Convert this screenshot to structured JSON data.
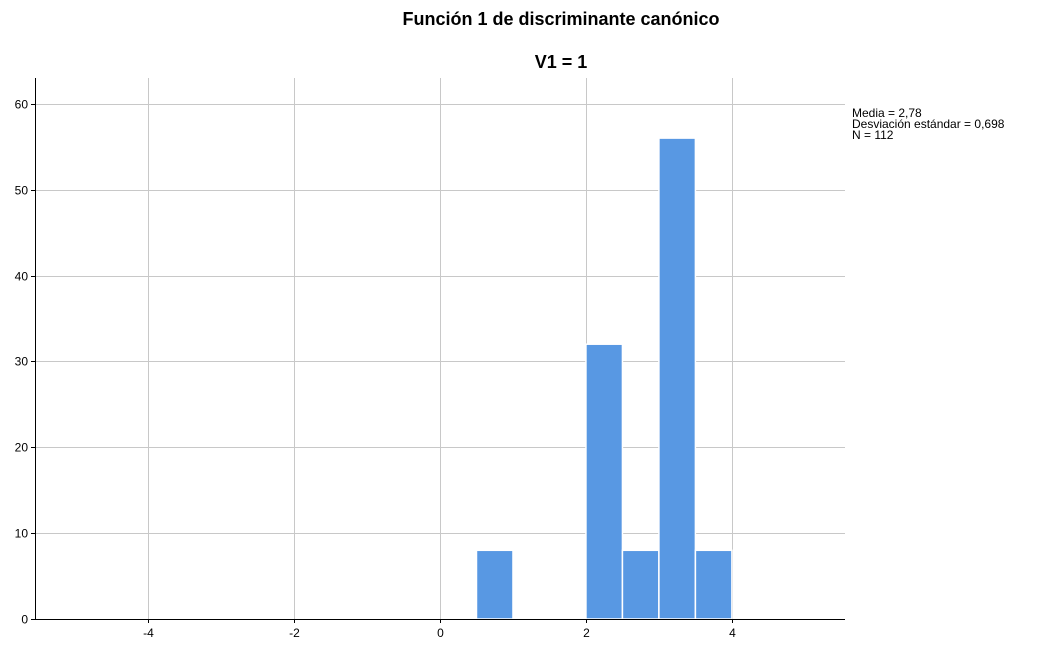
{
  "chart_data": {
    "type": "bar",
    "title": "Función 1 de discriminante canónico",
    "subtitle": "V1 = 1",
    "xlabel": "",
    "ylabel": "",
    "xlim": [
      -5.55,
      5.55
    ],
    "ylim": [
      0,
      63
    ],
    "x_ticks": [
      -4,
      -2,
      0,
      2,
      4
    ],
    "y_ticks": [
      0,
      10,
      20,
      30,
      40,
      50,
      60
    ],
    "grid": true,
    "bar_color": "#5898e3",
    "bins": [
      {
        "start": 0.5,
        "end": 1.0,
        "value": 8
      },
      {
        "start": 2.0,
        "end": 2.5,
        "value": 32
      },
      {
        "start": 2.5,
        "end": 3.0,
        "value": 8
      },
      {
        "start": 3.0,
        "end": 3.5,
        "value": 56
      },
      {
        "start": 3.5,
        "end": 4.0,
        "value": 8
      }
    ],
    "stats": [
      "Media = 2,78",
      "Desviación estándar = 0,698",
      "N = 112"
    ],
    "legend_position": "right"
  }
}
